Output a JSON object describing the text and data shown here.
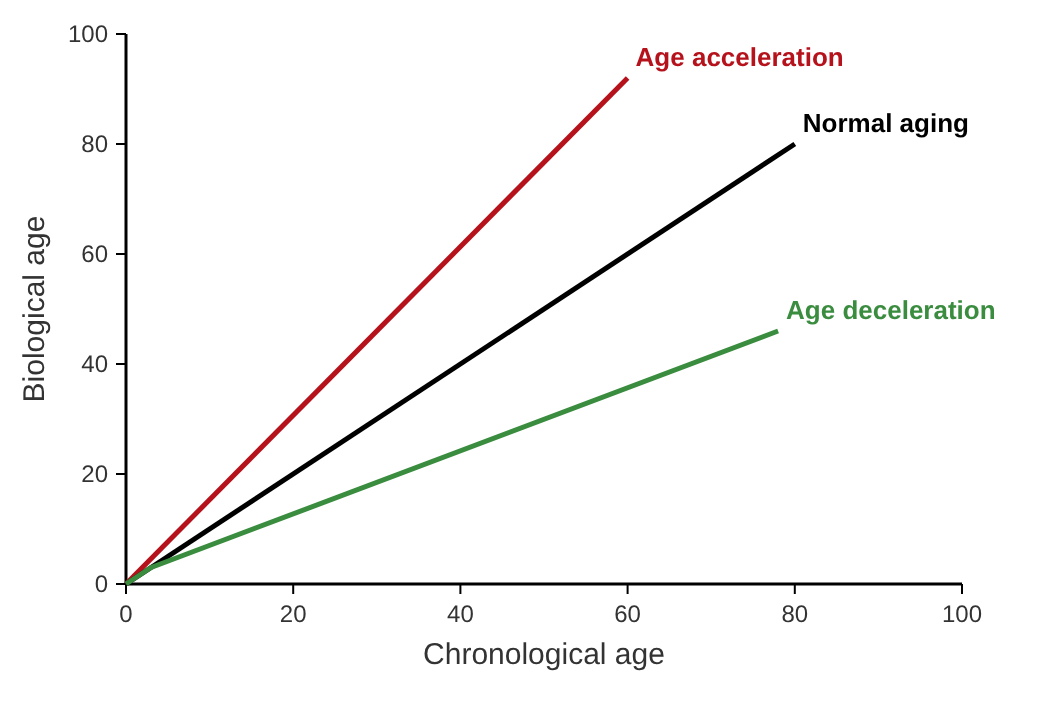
{
  "chart_data": {
    "type": "line",
    "xlabel": "Chronological age",
    "ylabel": "Biological age",
    "xlim": [
      0,
      100
    ],
    "ylim": [
      0,
      100
    ],
    "xticks": [
      0,
      20,
      40,
      60,
      80,
      100
    ],
    "yticks": [
      0,
      20,
      40,
      60,
      80,
      100
    ],
    "grid": false,
    "marker": "none",
    "line_style": "solid",
    "series": [
      {
        "name": "Age acceleration",
        "color": "#b5121b",
        "x": [
          0,
          60
        ],
        "values": [
          0,
          92
        ]
      },
      {
        "name": "Normal aging",
        "color": "#000000",
        "x": [
          0,
          80
        ],
        "values": [
          0,
          80
        ]
      },
      {
        "name": "Age deceleration",
        "color": "#3a8c3f",
        "x": [
          0,
          3,
          78
        ],
        "values": [
          0,
          3,
          46
        ]
      }
    ]
  }
}
